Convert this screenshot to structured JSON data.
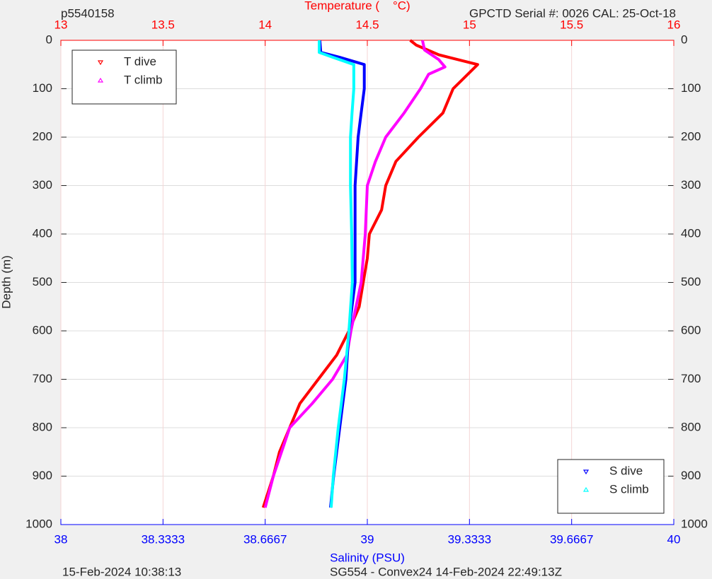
{
  "chart_data": {
    "type": "line",
    "title_left": "p5540158",
    "title": "Temperature (    °C)",
    "title_right": "GPCTD Serial #: 0026 CAL: 25-Oct-18",
    "ylabel": "Depth (m)",
    "xlabel": "Salinity (PSU)",
    "footer_left": "15-Feb-2024 10:38:13",
    "footer_center": "SG554 - Convex24 14-Feb-2024 22:49:13Z",
    "ylim": [
      0,
      1000
    ],
    "y_reversed": true,
    "yticks": [
      0,
      100,
      200,
      300,
      400,
      500,
      600,
      700,
      800,
      900,
      1000
    ],
    "x2lim": [
      13,
      16
    ],
    "x2ticks": [
      13,
      13.5,
      14,
      14.5,
      15,
      15.5,
      16
    ],
    "x2color": "#ff0000",
    "xlim": [
      38,
      40
    ],
    "xticks": [
      38,
      38.3333,
      38.6667,
      39,
      39.3333,
      39.6667,
      40
    ],
    "xcolor": "#0000ff",
    "grid": true,
    "series": [
      {
        "name": "T dive",
        "color": "#ff0000",
        "axis": "x2",
        "marker": "down",
        "legend": "upper left",
        "x": [
          14.71,
          14.74,
          14.85,
          15.04,
          14.92,
          14.87,
          14.75,
          14.64,
          14.59,
          14.57,
          14.51,
          14.5,
          14.48,
          14.46,
          14.41,
          14.35,
          14.26,
          14.17,
          14.12,
          14.07,
          14.04,
          13.99
        ],
        "y": [
          0,
          10,
          30,
          50,
          100,
          150,
          200,
          250,
          300,
          350,
          400,
          450,
          500,
          550,
          600,
          650,
          700,
          750,
          800,
          850,
          900,
          965
        ]
      },
      {
        "name": "T climb",
        "color": "#ff00ff",
        "axis": "x2",
        "marker": "up",
        "legend": "upper left",
        "x": [
          14.77,
          14.78,
          14.85,
          14.88,
          14.8,
          14.76,
          14.68,
          14.59,
          14.54,
          14.5,
          14.49,
          14.47,
          14.42,
          14.4,
          14.33,
          14.23,
          14.12,
          14.08,
          14.04,
          14.0
        ],
        "y": [
          0,
          20,
          40,
          55,
          70,
          100,
          150,
          200,
          250,
          300,
          400,
          500,
          600,
          650,
          700,
          750,
          800,
          850,
          900,
          965
        ]
      },
      {
        "name": "S dive",
        "color": "#0000ff",
        "axis": "x",
        "marker": "down",
        "legend": "lower right",
        "x": [
          38.845,
          38.848,
          38.91,
          38.99,
          38.99,
          38.98,
          38.97,
          38.96,
          38.96,
          38.96,
          38.94,
          38.93,
          38.91,
          38.89,
          38.88
        ],
        "y": [
          0,
          25,
          35,
          50,
          100,
          150,
          200,
          300,
          400,
          500,
          600,
          700,
          800,
          900,
          965
        ]
      },
      {
        "name": "S climb",
        "color": "#00ffff",
        "axis": "x",
        "marker": "up",
        "legend": "lower right",
        "x": [
          38.843,
          38.843,
          38.887,
          38.956,
          38.956,
          38.95,
          38.945,
          38.945,
          38.949,
          38.951,
          38.94,
          38.925,
          38.905,
          38.889,
          38.882
        ],
        "y": [
          0,
          25,
          35,
          50,
          100,
          150,
          200,
          300,
          400,
          500,
          600,
          700,
          800,
          900,
          965
        ]
      }
    ]
  }
}
